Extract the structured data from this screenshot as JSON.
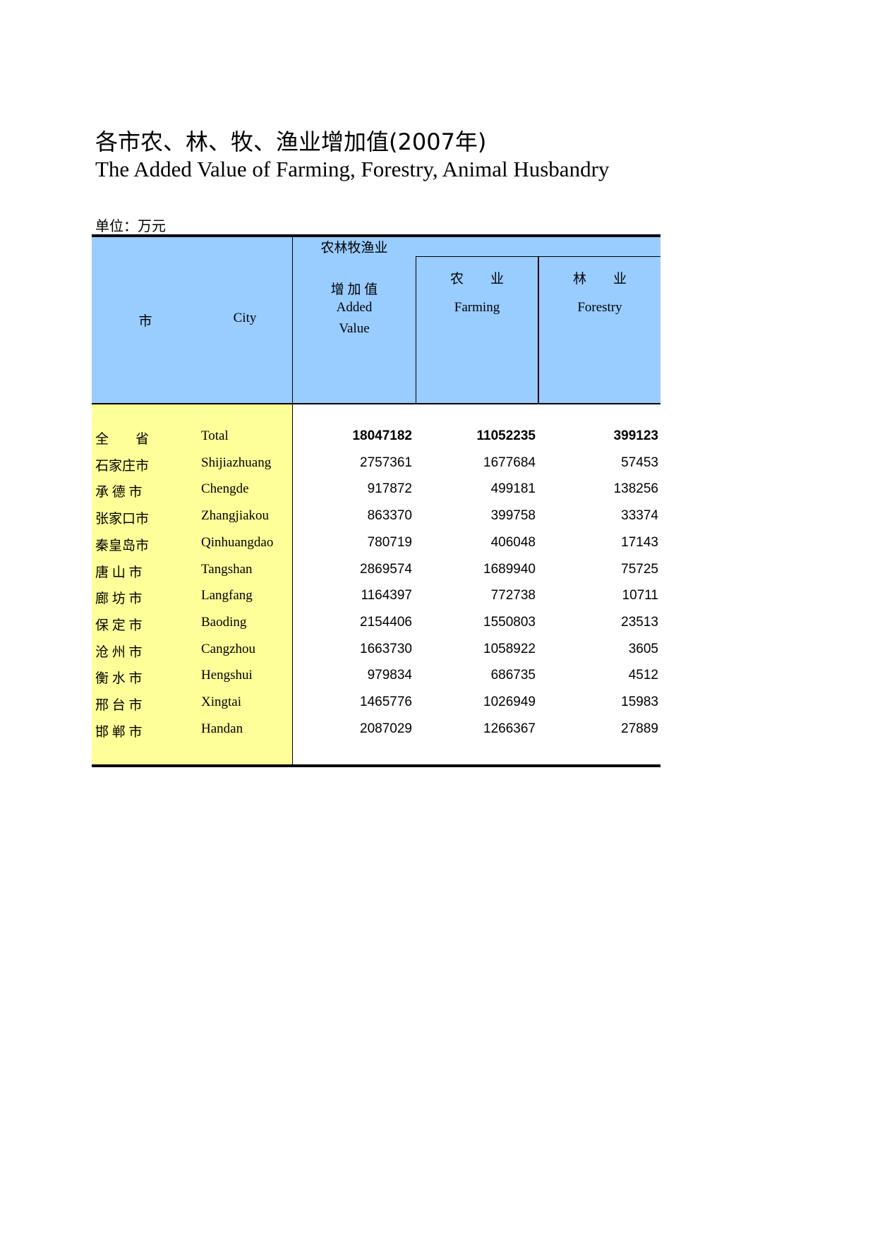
{
  "title_cn": "各市农、林、牧、渔业增加值(2007年)",
  "title_en": "The Added Value of Farming, Forestry, Animal Husbandry",
  "unit": "单位：万元",
  "colors": {
    "header_bg": "#99ccff",
    "city_col_bg": "#ffff99"
  },
  "header": {
    "city_cn": "市",
    "city_en": "City",
    "group": "农林牧渔业",
    "added_cn": "增 加 值",
    "added_en_1": "Added",
    "added_en_2": "Value",
    "farming_cn": "农　　业",
    "farming_en": "Farming",
    "forestry_cn": "林　　业",
    "forestry_en": "Forestry"
  },
  "rows": [
    {
      "cn": "全　　省",
      "en": "Total",
      "added": "18047182",
      "farming": "11052235",
      "forestry": "399123"
    },
    {
      "cn": "石家庄市",
      "en": "Shijiazhuang",
      "added": "2757361",
      "farming": "1677684",
      "forestry": "57453"
    },
    {
      "cn": "承 德 市",
      "en": "Chengde",
      "added": "917872",
      "farming": "499181",
      "forestry": "138256"
    },
    {
      "cn": "张家口市",
      "en": "Zhangjiakou",
      "added": "863370",
      "farming": "399758",
      "forestry": "33374"
    },
    {
      "cn": "秦皇岛市",
      "en": "Qinhuangdao",
      "added": "780719",
      "farming": "406048",
      "forestry": "17143"
    },
    {
      "cn": "唐 山 市",
      "en": "Tangshan",
      "added": "2869574",
      "farming": "1689940",
      "forestry": "75725"
    },
    {
      "cn": "廊 坊 市",
      "en": "Langfang",
      "added": "1164397",
      "farming": "772738",
      "forestry": "10711"
    },
    {
      "cn": "保 定 市",
      "en": "Baoding",
      "added": "2154406",
      "farming": "1550803",
      "forestry": "23513"
    },
    {
      "cn": "沧 州 市",
      "en": "Cangzhou",
      "added": "1663730",
      "farming": "1058922",
      "forestry": "3605"
    },
    {
      "cn": "衡 水 市",
      "en": "Hengshui",
      "added": "979834",
      "farming": "686735",
      "forestry": "4512"
    },
    {
      "cn": "邢 台 市",
      "en": "Xingtai",
      "added": "1465776",
      "farming": "1026949",
      "forestry": "15983"
    },
    {
      "cn": "邯 郸 市",
      "en": "Handan",
      "added": "2087029",
      "farming": "1266367",
      "forestry": "27889"
    }
  ]
}
